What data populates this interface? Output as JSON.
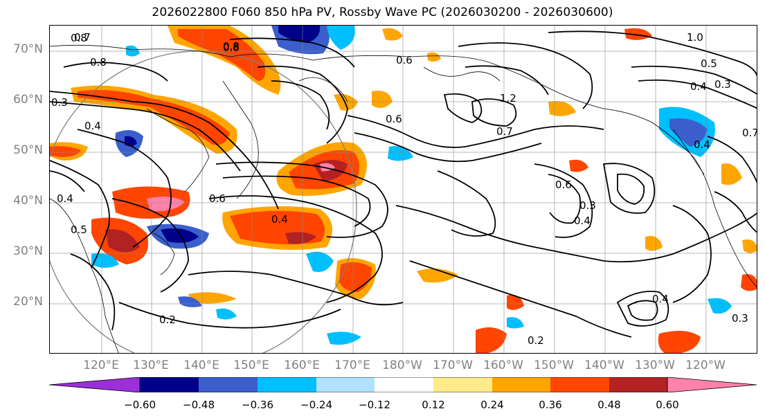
{
  "title": "2026022800 F060 850 hPa PV, Rossby Wave PC (2026030200 - 2026030600)",
  "lat_labels": [
    "70°N",
    "60°N",
    "50°N",
    "40°N",
    "30°N",
    "20°N"
  ],
  "lon_labels": [
    "120°E",
    "130°E",
    "140°E",
    "150°E",
    "160°E",
    "170°E",
    "180°W",
    "170°W",
    "160°W",
    "150°W",
    "140°W",
    "130°W",
    "120°W"
  ],
  "colorbar": {
    "ticks": [
      "−0.60",
      "−0.48",
      "−0.36",
      "−0.24",
      "−0.12",
      "0.12",
      "0.24",
      "0.36",
      "0.48",
      "0.60"
    ],
    "colors": [
      "#9b30d9",
      "#00008b",
      "#3a5fcd",
      "#00bfff",
      "#b0e2ff",
      "#ffffff",
      "#ffeb8a",
      "#ffa500",
      "#ff4500",
      "#b22222",
      "#ff82ab"
    ]
  },
  "contour_labels": [
    "0.7",
    "0.8",
    "0.3",
    "0.4",
    "0.6",
    "1.0",
    "0.2",
    "0.5"
  ],
  "contour_label_list": [
    "0.8",
    "0.7",
    "0.8",
    "0.3",
    "0.4",
    "0.8",
    "0.4",
    "0.5",
    "0.4",
    "0.8",
    "0.6",
    "0.7",
    "1.2",
    "0.6",
    "0.3",
    "0.4",
    "0.6",
    "1.0",
    "0.5",
    "0.4",
    "0.3",
    "0.4",
    "0.7",
    "0.2",
    "0.2",
    "0.4",
    "0.3",
    "0.6"
  ]
}
